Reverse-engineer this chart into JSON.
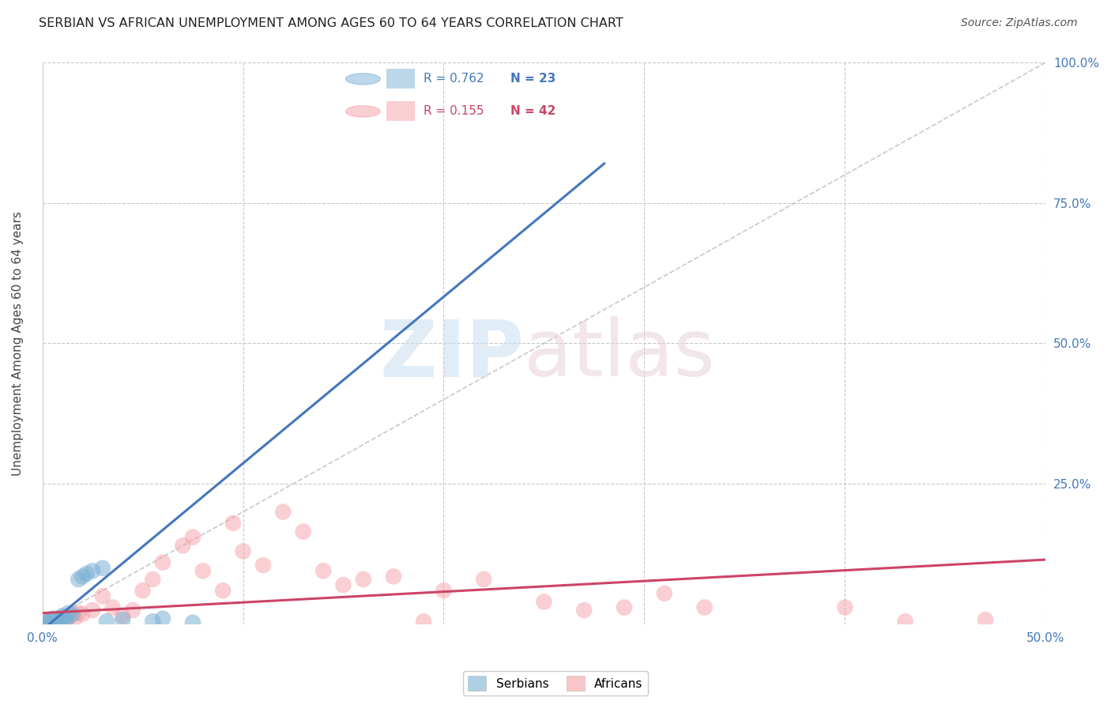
{
  "title": "SERBIAN VS AFRICAN UNEMPLOYMENT AMONG AGES 60 TO 64 YEARS CORRELATION CHART",
  "source": "Source: ZipAtlas.com",
  "ylabel": "Unemployment Among Ages 60 to 64 years",
  "xlim": [
    0.0,
    0.5
  ],
  "ylim": [
    0.0,
    1.0
  ],
  "xticks": [
    0.0,
    0.1,
    0.2,
    0.3,
    0.4,
    0.5
  ],
  "xtick_labels": [
    "0.0%",
    "",
    "",
    "",
    "",
    "50.0%"
  ],
  "yticks": [
    0.0,
    0.25,
    0.5,
    0.75,
    1.0
  ],
  "ytick_labels": [
    "",
    "25.0%",
    "50.0%",
    "75.0%",
    "100.0%"
  ],
  "background_color": "#ffffff",
  "grid_color": "#c8c8c8",
  "serbian_color": "#7ab0d4",
  "african_color": "#f4a0a8",
  "serbian_R": 0.762,
  "serbian_N": 23,
  "african_R": 0.155,
  "african_N": 42,
  "serbian_x": [
    0.002,
    0.003,
    0.004,
    0.005,
    0.006,
    0.007,
    0.008,
    0.009,
    0.01,
    0.011,
    0.012,
    0.013,
    0.015,
    0.018,
    0.02,
    0.022,
    0.025,
    0.03,
    0.032,
    0.04,
    0.055,
    0.06,
    0.075
  ],
  "serbian_y": [
    0.002,
    0.005,
    0.003,
    0.01,
    0.008,
    0.004,
    0.006,
    0.003,
    0.015,
    0.012,
    0.008,
    0.02,
    0.018,
    0.08,
    0.085,
    0.09,
    0.095,
    0.1,
    0.005,
    0.008,
    0.005,
    0.01,
    0.003
  ],
  "african_x": [
    0.002,
    0.004,
    0.006,
    0.008,
    0.01,
    0.012,
    0.014,
    0.016,
    0.018,
    0.02,
    0.025,
    0.03,
    0.035,
    0.04,
    0.045,
    0.05,
    0.055,
    0.06,
    0.07,
    0.075,
    0.08,
    0.09,
    0.095,
    0.1,
    0.11,
    0.12,
    0.13,
    0.14,
    0.15,
    0.16,
    0.175,
    0.19,
    0.2,
    0.22,
    0.25,
    0.27,
    0.29,
    0.31,
    0.33,
    0.4,
    0.43,
    0.47
  ],
  "african_y": [
    0.004,
    0.008,
    0.005,
    0.01,
    0.012,
    0.008,
    0.015,
    0.01,
    0.02,
    0.018,
    0.025,
    0.05,
    0.03,
    0.015,
    0.025,
    0.06,
    0.08,
    0.11,
    0.14,
    0.155,
    0.095,
    0.06,
    0.18,
    0.13,
    0.105,
    0.2,
    0.165,
    0.095,
    0.07,
    0.08,
    0.085,
    0.005,
    0.06,
    0.08,
    0.04,
    0.025,
    0.03,
    0.055,
    0.03,
    0.03,
    0.005,
    0.008
  ],
  "serbian_line_color": "#4477bb",
  "african_line_color": "#cc4466",
  "serbian_line_x": [
    0.0,
    0.28
  ],
  "serbian_line_y": [
    -0.01,
    0.82
  ],
  "african_line_x": [
    -0.01,
    0.5
  ],
  "african_line_y": [
    0.018,
    0.115
  ],
  "diag_line_color": "#bbbbbb",
  "diag_line_x": [
    0.0,
    0.5
  ],
  "diag_line_y": [
    0.0,
    1.0
  ],
  "title_color": "#222222",
  "axis_label_color": "#444444",
  "tick_color_x": "#4477bb",
  "tick_color_y": "#4477bb",
  "source_color": "#555555",
  "legend_serbian_text_color": "#4477bb",
  "legend_african_text_color": "#cc4466"
}
